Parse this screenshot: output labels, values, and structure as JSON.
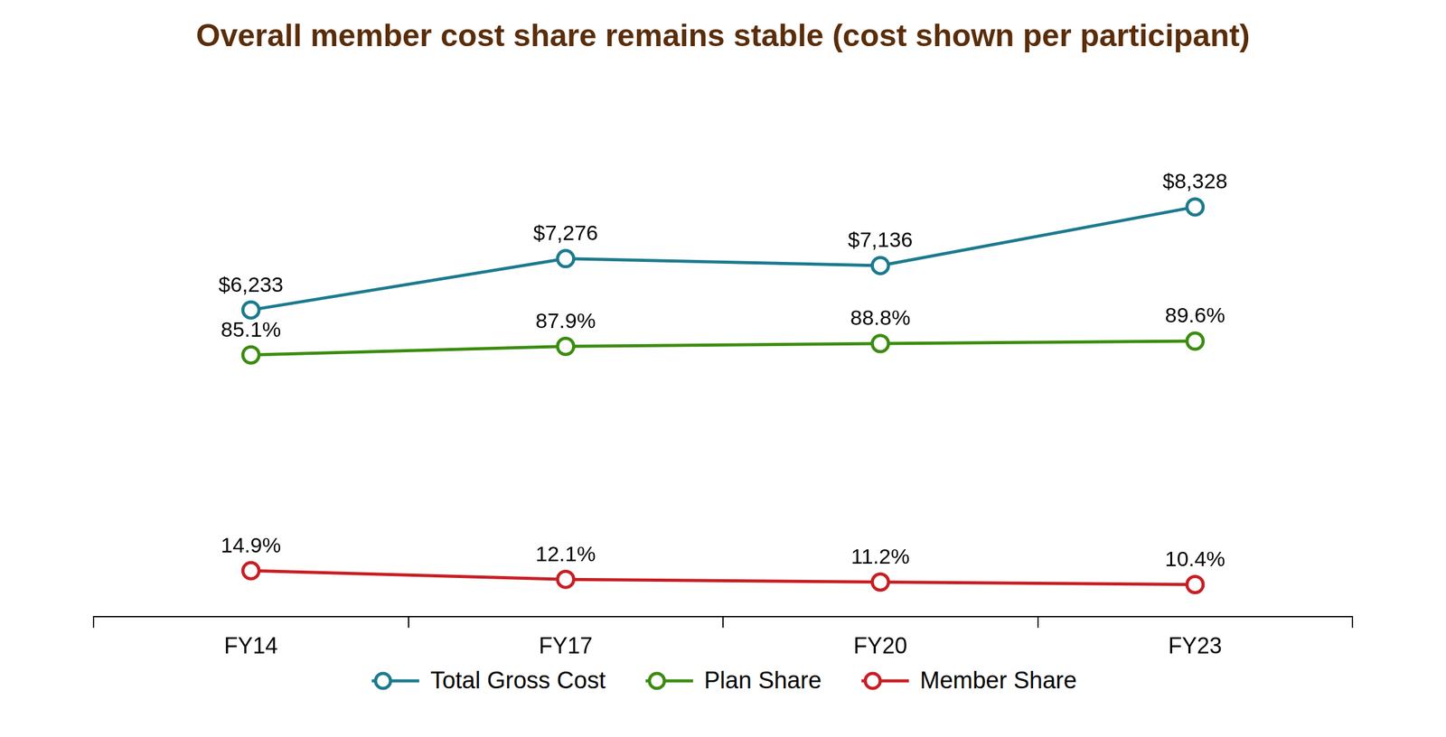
{
  "chart_data": {
    "type": "line",
    "title": "Overall member cost share remains stable (cost shown per participant)",
    "categories": [
      "FY14",
      "FY17",
      "FY20",
      "FY23"
    ],
    "series": [
      {
        "name": "Total Gross Cost",
        "color": "#1c7a8e",
        "axis": "y",
        "marker": "circle",
        "values": [
          6233,
          7276,
          7136,
          8328
        ],
        "value_labels": [
          "$6,233",
          "$7,276",
          "$7,136",
          "$8,328"
        ]
      },
      {
        "name": "Plan Share",
        "color": "#3b8c0f",
        "axis": "y2",
        "marker": "circle",
        "values": [
          85.1,
          87.9,
          88.8,
          89.6
        ],
        "value_labels": [
          "85.1%",
          "87.9%",
          "88.8%",
          "89.6%"
        ]
      },
      {
        "name": "Member Share",
        "color": "#c81e23",
        "axis": "y2",
        "marker": "circle",
        "values": [
          14.9,
          12.1,
          11.2,
          10.4
        ],
        "value_labels": [
          "14.9%",
          "12.1%",
          "11.2%",
          "10.4%"
        ]
      }
    ],
    "ylim": [
      0,
      10000
    ],
    "y2lim": [
      0,
      160
    ],
    "data_labels": true,
    "tick_labels": "x",
    "grid": false,
    "legend": "bottom"
  }
}
